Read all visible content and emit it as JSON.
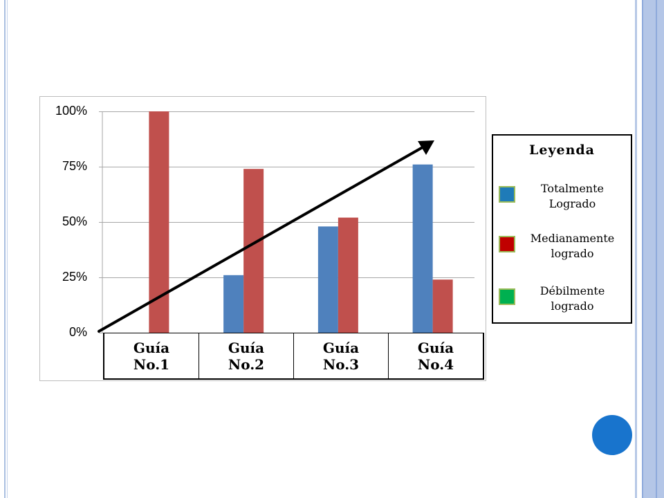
{
  "colors": {
    "accent_blue": "#4f81bd",
    "accent_red": "#c0504d",
    "legend_blue": "#1f7bb8",
    "legend_red": "#c00000",
    "legend_green": "#00b050",
    "swatch_border": "#9bbb59",
    "circle": "#1874cd"
  },
  "chart_data": {
    "type": "bar",
    "categories": [
      "Guía No.1",
      "Guía No.2",
      "Guía No.3",
      "Guía No.4"
    ],
    "category_labels": [
      "Guía\nNo.1",
      "Guía\nNo.2",
      "Guía\nNo.3",
      "Guía\nNo.4"
    ],
    "series": [
      {
        "name": "Totalmente Logrado",
        "color": "#4f81bd",
        "values": [
          0,
          26,
          48,
          76
        ]
      },
      {
        "name": "Medianamente logrado",
        "color": "#c0504d",
        "values": [
          100,
          74,
          52,
          24
        ]
      }
    ],
    "ylim": [
      0,
      100
    ],
    "yticks": [
      "0%",
      "25%",
      "50%",
      "75%",
      "100%"
    ],
    "ytick_values": [
      0,
      25,
      50,
      75,
      100
    ],
    "grid": true,
    "trend_arrow": true
  },
  "legend": {
    "title": "Leyenda",
    "items": [
      {
        "label": "Totalmente\nLogrado",
        "color": "#1f7bb8"
      },
      {
        "label": "Medianamente\nlogrado",
        "color": "#c00000"
      },
      {
        "label": "Débilmente\nlogrado",
        "color": "#00b050"
      }
    ]
  }
}
